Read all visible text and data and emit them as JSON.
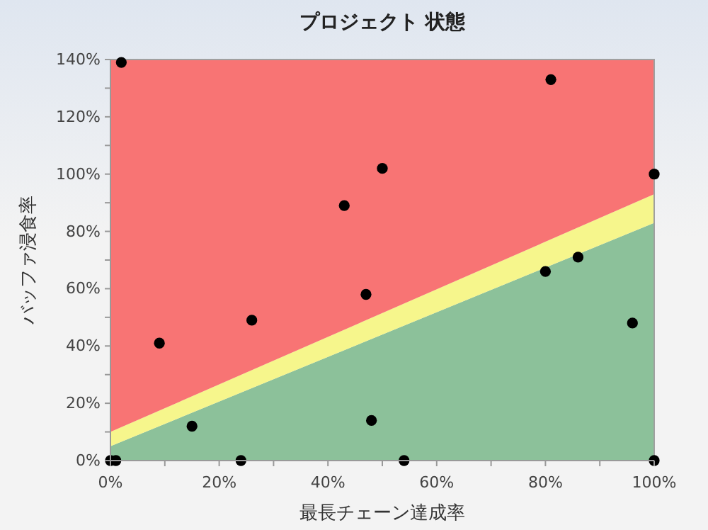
{
  "chart_data": {
    "type": "scatter",
    "title": "プロジェクト 状態",
    "xlabel": "最長チェーン達成率",
    "ylabel": "バッファ浸食率",
    "xlim": [
      0,
      100
    ],
    "ylim": [
      0,
      140
    ],
    "xticks": [
      {
        "value": 0,
        "label": "0%"
      },
      {
        "value": 10,
        "label": null
      },
      {
        "value": 20,
        "label": "20%"
      },
      {
        "value": 30,
        "label": null
      },
      {
        "value": 40,
        "label": "40%"
      },
      {
        "value": 50,
        "label": null
      },
      {
        "value": 60,
        "label": "60%"
      },
      {
        "value": 70,
        "label": null
      },
      {
        "value": 80,
        "label": "80%"
      },
      {
        "value": 90,
        "label": null
      },
      {
        "value": 100,
        "label": "100%"
      }
    ],
    "yticks": [
      {
        "value": 0,
        "label": "0%"
      },
      {
        "value": 10,
        "label": null
      },
      {
        "value": 20,
        "label": "20%"
      },
      {
        "value": 30,
        "label": null
      },
      {
        "value": 40,
        "label": "40%"
      },
      {
        "value": 50,
        "label": null
      },
      {
        "value": 60,
        "label": "60%"
      },
      {
        "value": 70,
        "label": null
      },
      {
        "value": 80,
        "label": "80%"
      },
      {
        "value": 90,
        "label": null
      },
      {
        "value": 100,
        "label": "100%"
      },
      {
        "value": 110,
        "label": null
      },
      {
        "value": 120,
        "label": "120%"
      },
      {
        "value": 130,
        "label": null
      },
      {
        "value": 140,
        "label": "140%"
      }
    ],
    "grid": false,
    "stacked": true,
    "series": [
      {
        "type": "area",
        "color": "#8cc19a",
        "x": [
          0,
          100
        ],
        "values": [
          5,
          83
        ]
      },
      {
        "type": "area",
        "color": "#f6f68c",
        "x": [
          0,
          100
        ],
        "values": [
          5,
          10
        ]
      },
      {
        "type": "area",
        "color": "#f87474",
        "x": [
          0,
          100
        ],
        "values": [
          130,
          47
        ]
      },
      {
        "marker": "circle",
        "color": "#000000",
        "x": [
          0,
          1,
          2,
          9,
          15,
          24,
          26,
          43,
          50,
          47,
          48,
          54,
          81,
          80,
          86,
          96,
          100,
          100
        ],
        "values": [
          0,
          0,
          139,
          41,
          12,
          0,
          49,
          89,
          102,
          58,
          14,
          0,
          133,
          66,
          71,
          48,
          100,
          0
        ]
      }
    ]
  }
}
